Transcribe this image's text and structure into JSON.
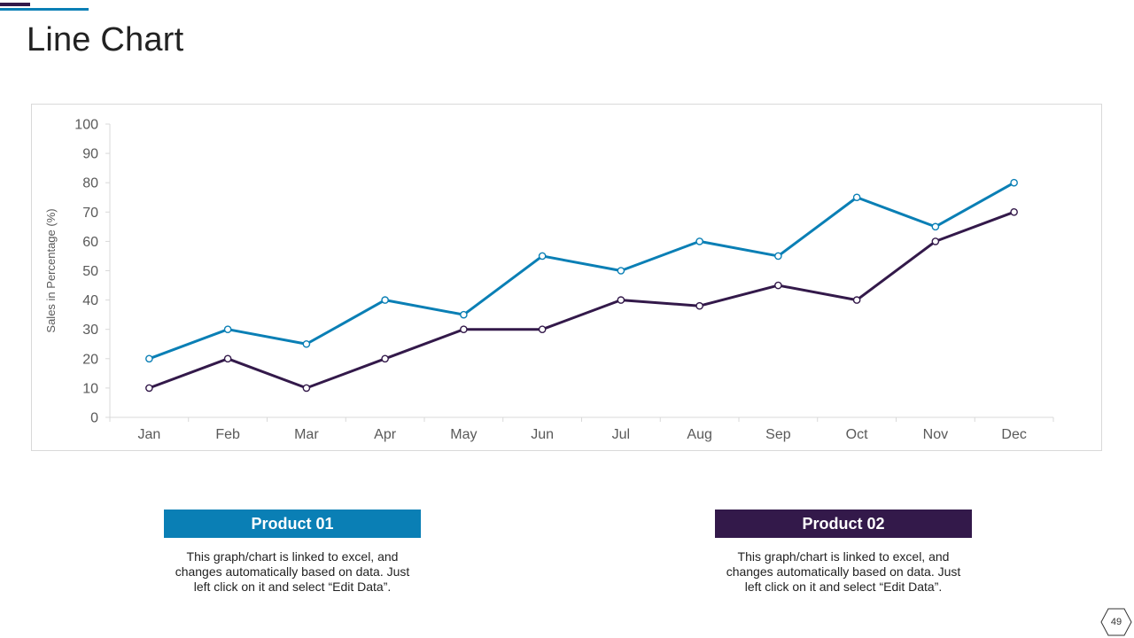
{
  "title": "Line Chart",
  "colors": {
    "product01": "#0a7fb5",
    "product02": "#33194a"
  },
  "chart_data": {
    "type": "line",
    "title": "",
    "xlabel": "",
    "ylabel": "Sales in Percentage (%)",
    "ylim": [
      0,
      100
    ],
    "yticks": [
      0,
      10,
      20,
      30,
      40,
      50,
      60,
      70,
      80,
      90,
      100
    ],
    "grid": false,
    "categories": [
      "Jan",
      "Feb",
      "Mar",
      "Apr",
      "May",
      "Jun",
      "Jul",
      "Aug",
      "Sep",
      "Oct",
      "Nov",
      "Dec"
    ],
    "series": [
      {
        "name": "Product 01",
        "color": "#0a7fb5",
        "values": [
          20,
          30,
          25,
          40,
          35,
          55,
          50,
          60,
          55,
          75,
          65,
          80
        ]
      },
      {
        "name": "Product 02",
        "color": "#33194a",
        "values": [
          10,
          20,
          10,
          20,
          30,
          30,
          40,
          38,
          45,
          40,
          60,
          70
        ]
      }
    ]
  },
  "products": [
    {
      "label": "Product 01",
      "description": "This graph/chart is linked to excel, and changes automatically based on data. Just left click on it and select “Edit Data”."
    },
    {
      "label": "Product 02",
      "description": "This graph/chart is linked to excel, and changes automatically based on data. Just left click on it and select “Edit Data”."
    }
  ],
  "page_number": "49"
}
